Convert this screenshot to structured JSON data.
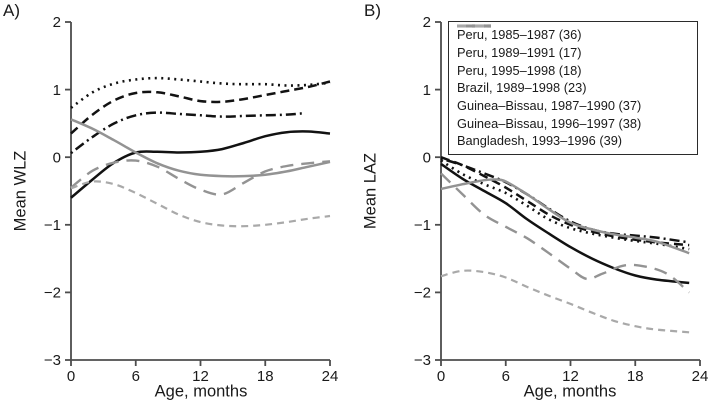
{
  "figure": {
    "panel_a_label": "A)",
    "panel_b_label": "B)",
    "colors": {
      "black": "#121212",
      "gray": "#939393",
      "light_gray": "#a9a9a9",
      "axis": "#4d4d4d",
      "text": "#1a1a1a",
      "background": "#ffffff"
    }
  },
  "legend": {
    "entries": [
      {
        "label": "Peru, 1985–1987 (36)",
        "style": "solid",
        "color": "#121212"
      },
      {
        "label": "Peru, 1989–1991 (17)",
        "style": "dashed",
        "color": "#121212"
      },
      {
        "label": "Peru, 1995–1998 (18)",
        "style": "dotted",
        "color": "#121212"
      },
      {
        "label": "Brazil, 1989–1998 (23)",
        "style": "dashdot",
        "color": "#121212"
      },
      {
        "label": "Guinea–Bissau, 1987–1990 (37)",
        "style": "longdash",
        "color": "#939393"
      },
      {
        "label": "Guinea–Bissau, 1996–1997 (38)",
        "style": "solid",
        "color": "#939393"
      },
      {
        "label": "Bangladesh, 1993–1996 (39)",
        "style": "dashed2",
        "color": "#a9a9a9"
      }
    ]
  },
  "chart_data": [
    {
      "type": "line",
      "panel": "A",
      "xlabel": "Age, months",
      "ylabel": "Mean WLZ",
      "xlim": [
        0,
        24
      ],
      "ylim": [
        -3,
        2
      ],
      "xticks": [
        0,
        6,
        12,
        18,
        24
      ],
      "yticks": [
        2,
        1,
        0,
        -1,
        -2,
        -3
      ],
      "grid": false,
      "series": [
        {
          "name": "Peru, 1985–1987 (36)",
          "style": "solid",
          "color": "#121212",
          "x": [
            0,
            2,
            4,
            6,
            8,
            10,
            12,
            14,
            16,
            18,
            20,
            22,
            24
          ],
          "y": [
            -0.6,
            -0.33,
            -0.08,
            0.07,
            0.08,
            0.07,
            0.08,
            0.12,
            0.21,
            0.31,
            0.37,
            0.38,
            0.35
          ]
        },
        {
          "name": "Peru, 1989–1991 (17)",
          "style": "dashed",
          "color": "#121212",
          "x": [
            0,
            2,
            4,
            6,
            8,
            10,
            12,
            14,
            16,
            18,
            20,
            22,
            24
          ],
          "y": [
            0.35,
            0.63,
            0.84,
            0.95,
            0.96,
            0.9,
            0.83,
            0.82,
            0.86,
            0.92,
            0.98,
            1.04,
            1.12
          ]
        },
        {
          "name": "Peru, 1995–1998 (18)",
          "style": "dotted",
          "color": "#121212",
          "x": [
            0,
            2,
            4,
            6,
            8,
            10,
            12,
            14,
            16,
            18,
            20,
            22,
            24
          ],
          "y": [
            0.73,
            0.96,
            1.09,
            1.15,
            1.17,
            1.15,
            1.12,
            1.09,
            1.08,
            1.08,
            1.06,
            1.07,
            1.1
          ]
        },
        {
          "name": "Brazil, 1989–1998 (23)",
          "style": "dashdot",
          "color": "#121212",
          "x": [
            0,
            2,
            4,
            6,
            8,
            10,
            12,
            14,
            16,
            18,
            20,
            21.5
          ],
          "y": [
            0.06,
            0.3,
            0.5,
            0.62,
            0.66,
            0.64,
            0.62,
            0.6,
            0.61,
            0.62,
            0.63,
            0.65
          ]
        },
        {
          "name": "Guinea–Bissau, 1987–1990 (37)",
          "style": "longdash",
          "color": "#939393",
          "x": [
            0,
            2,
            4,
            6,
            8,
            10,
            12,
            14,
            16,
            18,
            20,
            22,
            24
          ],
          "y": [
            -0.45,
            -0.2,
            -0.08,
            -0.05,
            -0.14,
            -0.32,
            -0.48,
            -0.55,
            -0.38,
            -0.21,
            -0.13,
            -0.09,
            -0.06
          ]
        },
        {
          "name": "Guinea–Bissau, 1996–1997 (38)",
          "style": "solid",
          "color": "#939393",
          "x": [
            0,
            2,
            4,
            6,
            8,
            10,
            12,
            14,
            16,
            18,
            20,
            22,
            24
          ],
          "y": [
            0.56,
            0.42,
            0.25,
            0.07,
            -0.09,
            -0.2,
            -0.26,
            -0.28,
            -0.28,
            -0.26,
            -0.21,
            -0.14,
            -0.07
          ]
        },
        {
          "name": "Bangladesh, 1993–1996 (39)",
          "style": "dashed2",
          "color": "#a9a9a9",
          "x": [
            0,
            2,
            4,
            6,
            8,
            10,
            12,
            14,
            16,
            18,
            20,
            22,
            24
          ],
          "y": [
            -0.46,
            -0.36,
            -0.4,
            -0.53,
            -0.69,
            -0.85,
            -0.96,
            -1.01,
            -1.02,
            -1.0,
            -0.96,
            -0.91,
            -0.87
          ]
        }
      ]
    },
    {
      "type": "line",
      "panel": "B",
      "xlabel": "Age, months",
      "ylabel": "Mean LAZ",
      "xlim": [
        0,
        24
      ],
      "ylim": [
        -3,
        2
      ],
      "xticks": [
        0,
        6,
        12,
        18,
        24
      ],
      "yticks": [
        2,
        1,
        0,
        -1,
        -2,
        -3
      ],
      "grid": false,
      "series": [
        {
          "name": "Peru, 1985–1987 (36)",
          "style": "solid",
          "color": "#121212",
          "x": [
            0,
            2,
            4,
            6,
            8,
            10,
            12,
            14,
            16,
            18,
            20,
            23
          ],
          "y": [
            -0.1,
            -0.32,
            -0.5,
            -0.68,
            -0.92,
            -1.13,
            -1.33,
            -1.5,
            -1.64,
            -1.75,
            -1.81,
            -1.86
          ]
        },
        {
          "name": "Peru, 1989–1991 (17)",
          "style": "dashed",
          "color": "#121212",
          "x": [
            0,
            2,
            4,
            6,
            8,
            10,
            12,
            14,
            16,
            18,
            20,
            23
          ],
          "y": [
            0.0,
            -0.12,
            -0.28,
            -0.45,
            -0.65,
            -0.85,
            -1.0,
            -1.1,
            -1.17,
            -1.22,
            -1.26,
            -1.3
          ]
        },
        {
          "name": "Peru, 1995–1998 (18)",
          "style": "dotted",
          "color": "#121212",
          "x": [
            0,
            2,
            4,
            6,
            8,
            10,
            12,
            14,
            16,
            18,
            20,
            23
          ],
          "y": [
            -0.05,
            -0.25,
            -0.4,
            -0.53,
            -0.72,
            -0.92,
            -1.05,
            -1.13,
            -1.19,
            -1.24,
            -1.28,
            -1.36
          ]
        },
        {
          "name": "Brazil, 1989–1998 (23)",
          "style": "dashdot",
          "color": "#121212",
          "x": [
            0,
            2,
            4,
            6,
            8,
            10,
            12,
            14,
            16,
            18,
            20,
            23
          ],
          "y": [
            -0.02,
            -0.12,
            -0.24,
            -0.37,
            -0.55,
            -0.76,
            -0.95,
            -1.07,
            -1.13,
            -1.16,
            -1.19,
            -1.26
          ]
        },
        {
          "name": "Guinea–Bissau, 1987–1990 (37)",
          "style": "longdash",
          "color": "#939393",
          "x": [
            0,
            2,
            4,
            6,
            8,
            10,
            12,
            13.5,
            15,
            17,
            19,
            21,
            23
          ],
          "y": [
            -0.24,
            -0.55,
            -0.85,
            -1.03,
            -1.2,
            -1.42,
            -1.65,
            -1.8,
            -1.72,
            -1.6,
            -1.62,
            -1.73,
            -2.0
          ]
        },
        {
          "name": "Guinea–Bissau, 1996–1997 (38)",
          "style": "solid",
          "color": "#939393",
          "x": [
            0,
            2,
            4,
            5,
            6,
            8,
            10,
            12,
            14,
            16,
            18,
            20,
            23
          ],
          "y": [
            -0.47,
            -0.4,
            -0.34,
            -0.33,
            -0.36,
            -0.55,
            -0.77,
            -0.97,
            -1.07,
            -1.14,
            -1.19,
            -1.25,
            -1.42
          ]
        },
        {
          "name": "Bangladesh, 1993–1996 (39)",
          "style": "dashed2",
          "color": "#a9a9a9",
          "x": [
            0,
            2,
            4,
            6,
            8,
            10,
            12,
            14,
            16,
            18,
            20,
            23
          ],
          "y": [
            -1.76,
            -1.68,
            -1.7,
            -1.78,
            -1.92,
            -2.05,
            -2.17,
            -2.3,
            -2.42,
            -2.5,
            -2.55,
            -2.59
          ]
        }
      ]
    }
  ]
}
